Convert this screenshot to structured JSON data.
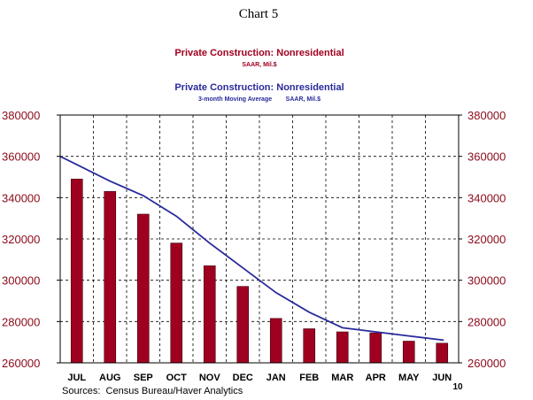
{
  "chart_data": {
    "type": "bar",
    "title": "Chart 5",
    "legend": [
      {
        "name": "Private Construction: Nonresidential",
        "subtitle": "SAAR, Mil.$",
        "color": "#a00020"
      },
      {
        "name": "Private Construction: Nonresidential",
        "subtitle": "3-month Moving Average        SAAR, Mil.$",
        "color": "#2a2a9c"
      }
    ],
    "categories": [
      "JUL",
      "AUG",
      "SEP",
      "OCT",
      "NOV",
      "DEC",
      "JAN",
      "FEB",
      "MAR",
      "APR",
      "MAY",
      "JUN"
    ],
    "year_label": "10",
    "series": [
      {
        "name": "Private Construction: Nonresidential",
        "type": "bar",
        "color": "#a00020",
        "values": [
          349000,
          343000,
          332000,
          318000,
          307000,
          297000,
          281500,
          276500,
          275000,
          274500,
          270500,
          269500
        ]
      },
      {
        "name": "Private Construction: Nonresidential",
        "type": "line",
        "color": "#2a2a9c",
        "values": [
          360000,
          348000,
          341000,
          331000,
          318000,
          306000,
          294000,
          284500,
          277000,
          275000,
          273000,
          271000
        ]
      }
    ],
    "ylim": [
      260000,
      380000
    ],
    "yticks": [
      "260000",
      "280000",
      "300000",
      "320000",
      "340000",
      "360000",
      "380000"
    ],
    "grid": true,
    "source": "Sources:  Census Bureau/Haver Analytics"
  }
}
